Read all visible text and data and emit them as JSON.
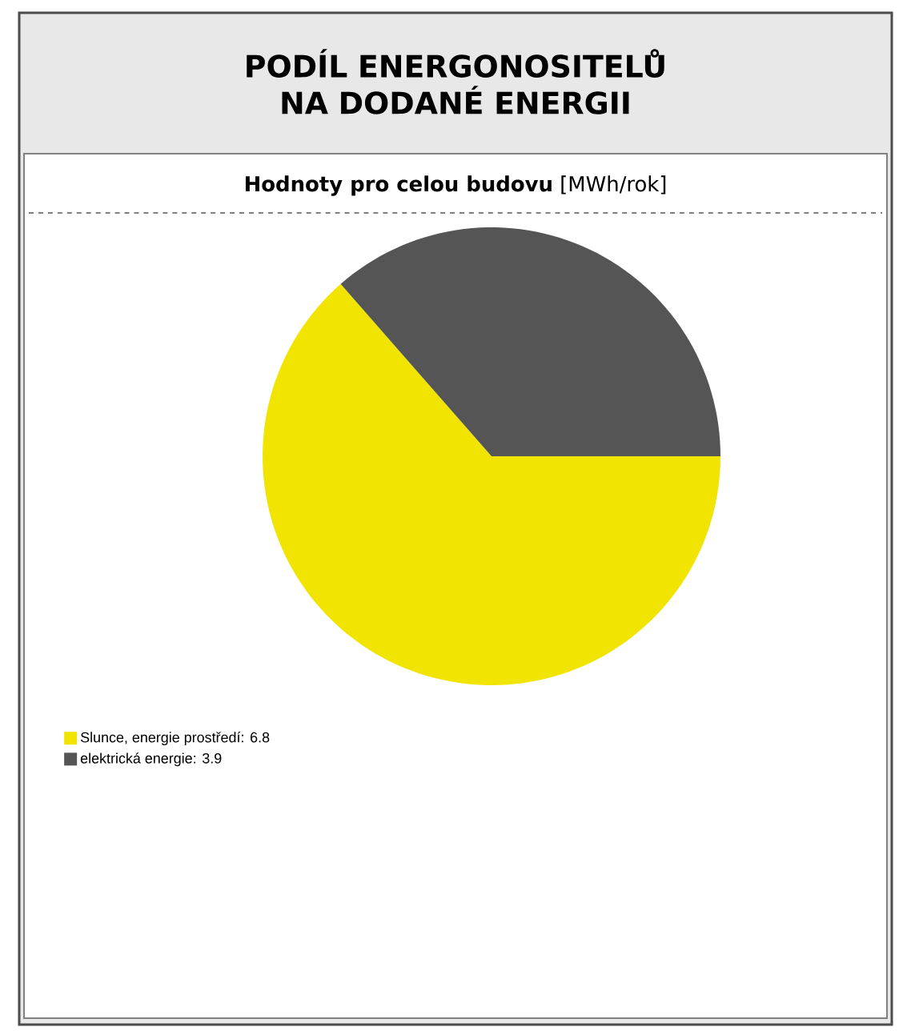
{
  "chart_data": {
    "type": "pie",
    "title": "PODÍL ENERGONOSITELŮ NA DODANÉ ENERGII",
    "subtitle": "**Hodnoty pro celou budovu** [MWh/rok]",
    "categories": [
      "Slunce, energie prostředí",
      "elektrická energie"
    ],
    "values": [
      6.8,
      3.9
    ],
    "colors": [
      "#f0e400",
      "#555555"
    ],
    "value_labels": [
      ": 6.8",
      ": 3.9"
    ],
    "legend": "bottom left"
  }
}
